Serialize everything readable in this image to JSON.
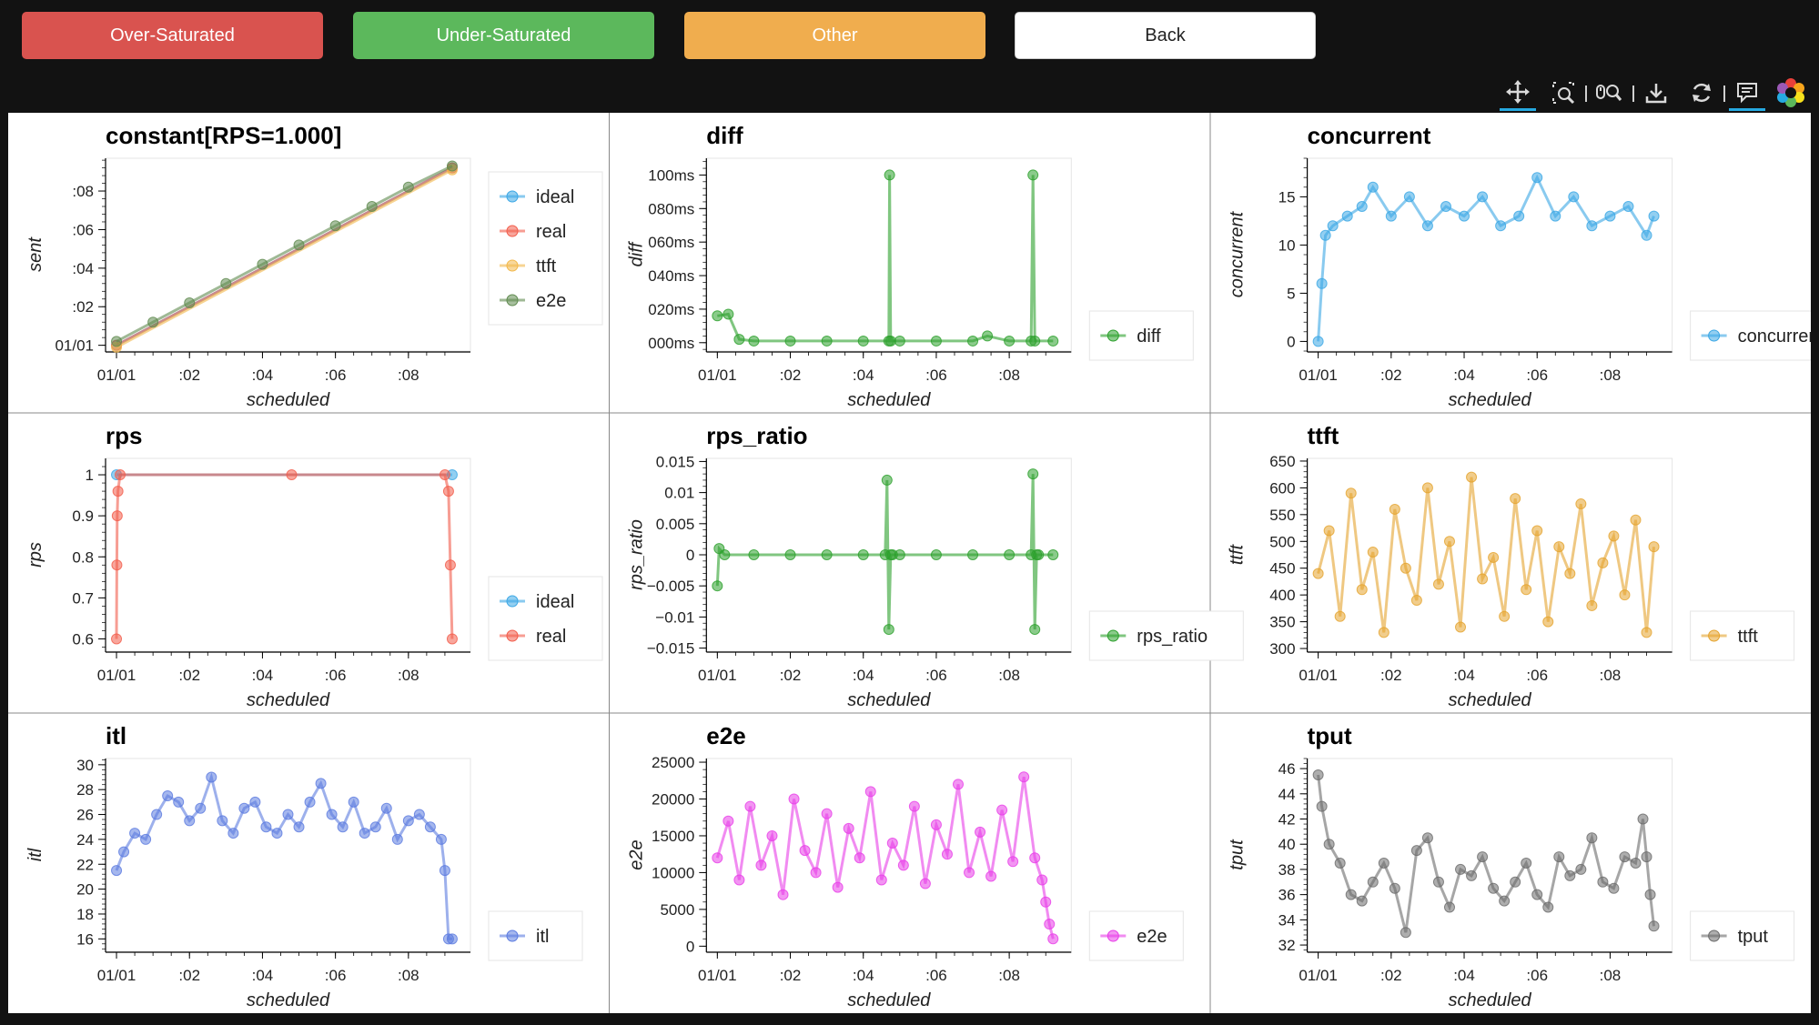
{
  "buttons": {
    "over": "Over-Saturated",
    "under": "Under-Saturated",
    "other": "Other",
    "back": "Back"
  },
  "button_colors": {
    "over": "#d9534f",
    "under": "#5cb85c",
    "other": "#f0ad4e",
    "back": "#ffffff"
  },
  "toolbar": {
    "icons": [
      "pan-icon",
      "box-zoom-icon",
      "wheel-zoom-icon",
      "save-icon",
      "reset-icon",
      "hover-icon",
      "bokeh-logo-icon"
    ],
    "active": [
      "pan-icon",
      "hover-icon"
    ]
  },
  "chart_data": [
    {
      "type": "line",
      "title": "constant[RPS=1.000]",
      "xlabel": "scheduled",
      "ylabel": "sent",
      "x_ticks": [
        "01/01",
        ":02",
        ":04",
        ":06",
        ":08"
      ],
      "y_ticks": [
        "01/01",
        ":02",
        ":04",
        ":06",
        ":08"
      ],
      "xlim": [
        -0.3,
        9.7
      ],
      "ylim": [
        -0.3,
        9.7
      ],
      "y_tick_values": [
        0,
        2,
        4,
        6,
        8
      ],
      "legend": [
        {
          "name": "ideal",
          "color": "#3ba7e5"
        },
        {
          "name": "real",
          "color": "#f25c4b"
        },
        {
          "name": "ttft",
          "color": "#f2b84b"
        },
        {
          "name": "e2e",
          "color": "#5f8a4f"
        }
      ],
      "series": [
        {
          "name": "ideal",
          "color": "#3ba7e5",
          "x": [
            0,
            9.2
          ],
          "y": [
            0,
            9.2
          ]
        },
        {
          "name": "real",
          "color": "#f25c4b",
          "x": [
            0,
            9.2
          ],
          "y": [
            0,
            9.2
          ]
        },
        {
          "name": "ttft",
          "color": "#f2b84b",
          "x": [
            0,
            9.2
          ],
          "y": [
            -0.1,
            9.1
          ]
        },
        {
          "name": "e2e",
          "color": "#5f8a4f",
          "x": [
            0,
            1,
            2,
            3,
            4,
            5,
            6,
            7,
            8,
            9.2
          ],
          "y": [
            0.2,
            1.2,
            2.2,
            3.2,
            4.2,
            5.2,
            6.2,
            7.2,
            8.2,
            9.3
          ]
        }
      ]
    },
    {
      "type": "line",
      "title": "diff",
      "xlabel": "scheduled",
      "ylabel": "diff",
      "x_ticks": [
        "01/01",
        ":02",
        ":04",
        ":06",
        ":08"
      ],
      "y_ticks": [
        "000ms",
        "020ms",
        "040ms",
        "060ms",
        "080ms",
        "100ms"
      ],
      "y_tick_values": [
        0,
        20,
        40,
        60,
        80,
        100
      ],
      "xlim": [
        -0.3,
        9.7
      ],
      "ylim": [
        -5,
        110
      ],
      "legend": [
        {
          "name": "diff",
          "color": "#2ca02c"
        }
      ],
      "series": [
        {
          "name": "diff",
          "color": "#2ca02c",
          "x": [
            0,
            0.3,
            0.6,
            1,
            2,
            3,
            4,
            4.7,
            4.72,
            4.75,
            5,
            6,
            7,
            7.4,
            8,
            8.6,
            8.65,
            8.7,
            9.2
          ],
          "y": [
            16,
            17,
            2,
            1,
            1,
            1,
            1,
            1,
            100,
            1,
            1,
            1,
            1,
            4,
            1,
            1,
            100,
            1,
            1
          ]
        }
      ]
    },
    {
      "type": "line",
      "title": "concurrent",
      "xlabel": "scheduled",
      "ylabel": "concurrent",
      "x_ticks": [
        "01/01",
        ":02",
        ":04",
        ":06",
        ":08"
      ],
      "y_ticks": [
        "0",
        "5",
        "10",
        "15"
      ],
      "y_tick_values": [
        0,
        5,
        10,
        15
      ],
      "xlim": [
        -0.3,
        9.7
      ],
      "ylim": [
        -1,
        19
      ],
      "legend": [
        {
          "name": "concurrent",
          "color": "#3ba7e5"
        }
      ],
      "series": [
        {
          "name": "concurrent",
          "color": "#3ba7e5",
          "x": [
            0,
            0.1,
            0.2,
            0.4,
            0.8,
            1.2,
            1.5,
            2,
            2.5,
            3,
            3.5,
            4,
            4.5,
            5,
            5.5,
            6,
            6.5,
            7,
            7.5,
            8,
            8.5,
            9,
            9.2
          ],
          "y": [
            0,
            6,
            11,
            12,
            13,
            14,
            16,
            13,
            15,
            12,
            14,
            13,
            15,
            12,
            13,
            17,
            13,
            15,
            12,
            13,
            14,
            11,
            13
          ]
        }
      ]
    },
    {
      "type": "line",
      "title": "rps",
      "xlabel": "scheduled",
      "ylabel": "rps",
      "x_ticks": [
        "01/01",
        ":02",
        ":04",
        ":06",
        ":08"
      ],
      "y_ticks": [
        "0.6",
        "0.7",
        "0.8",
        "0.9",
        "1"
      ],
      "y_tick_values": [
        0.6,
        0.7,
        0.8,
        0.9,
        1
      ],
      "xlim": [
        -0.3,
        9.7
      ],
      "ylim": [
        0.57,
        1.04
      ],
      "legend": [
        {
          "name": "ideal",
          "color": "#3ba7e5"
        },
        {
          "name": "real",
          "color": "#f25c4b"
        }
      ],
      "series": [
        {
          "name": "ideal",
          "color": "#3ba7e5",
          "x": [
            0,
            9.2
          ],
          "y": [
            1,
            1
          ]
        },
        {
          "name": "real",
          "color": "#f25c4b",
          "x": [
            0,
            0.01,
            0.02,
            0.04,
            0.1,
            4.8,
            9.0,
            9.1,
            9.15,
            9.2
          ],
          "y": [
            0.6,
            0.78,
            0.9,
            0.96,
            1,
            1,
            1,
            0.96,
            0.78,
            0.6
          ]
        }
      ]
    },
    {
      "type": "line",
      "title": "rps_ratio",
      "xlabel": "scheduled",
      "ylabel": "rps_ratio",
      "x_ticks": [
        "01/01",
        ":02",
        ":04",
        ":06",
        ":08"
      ],
      "y_ticks": [
        "−0.015",
        "−0.01",
        "−0.005",
        "0",
        "0.005",
        "0.01",
        "0.015"
      ],
      "y_tick_values": [
        -0.015,
        -0.01,
        -0.005,
        0,
        0.005,
        0.01,
        0.015
      ],
      "xlim": [
        -0.3,
        9.7
      ],
      "ylim": [
        -0.0155,
        0.0155
      ],
      "legend": [
        {
          "name": "rps_ratio",
          "color": "#2ca02c"
        }
      ],
      "series": [
        {
          "name": "rps_ratio",
          "color": "#2ca02c",
          "x": [
            0,
            0.05,
            0.2,
            1,
            2,
            3,
            4,
            4.6,
            4.65,
            4.7,
            4.75,
            4.8,
            5,
            6,
            7,
            8,
            8.6,
            8.65,
            8.7,
            8.75,
            8.8,
            9.2
          ],
          "y": [
            -0.005,
            0.001,
            0,
            0,
            0,
            0,
            0,
            0,
            0.012,
            -0.012,
            0.0,
            0,
            0,
            0,
            0,
            0,
            0,
            0.013,
            -0.012,
            0.0,
            0,
            0
          ]
        }
      ]
    },
    {
      "type": "line",
      "title": "ttft",
      "xlabel": "scheduled",
      "ylabel": "ttft",
      "x_ticks": [
        "01/01",
        ":02",
        ":04",
        ":06",
        ":08"
      ],
      "y_ticks": [
        "300",
        "350",
        "400",
        "450",
        "500",
        "550",
        "600",
        "650"
      ],
      "y_tick_values": [
        300,
        350,
        400,
        450,
        500,
        550,
        600,
        650
      ],
      "xlim": [
        -0.3,
        9.7
      ],
      "ylim": [
        295,
        655
      ],
      "legend": [
        {
          "name": "ttft",
          "color": "#e5a42e"
        }
      ],
      "series": [
        {
          "name": "ttft",
          "color": "#e5a42e",
          "x": [
            0,
            0.3,
            0.6,
            0.9,
            1.2,
            1.5,
            1.8,
            2.1,
            2.4,
            2.7,
            3,
            3.3,
            3.6,
            3.9,
            4.2,
            4.5,
            4.8,
            5.1,
            5.4,
            5.7,
            6,
            6.3,
            6.6,
            6.9,
            7.2,
            7.5,
            7.8,
            8.1,
            8.4,
            8.7,
            9,
            9.2
          ],
          "y": [
            440,
            520,
            360,
            590,
            410,
            480,
            330,
            560,
            450,
            390,
            600,
            420,
            500,
            340,
            620,
            430,
            470,
            360,
            580,
            410,
            520,
            350,
            490,
            440,
            570,
            380,
            460,
            510,
            400,
            540,
            330,
            490
          ]
        }
      ]
    },
    {
      "type": "line",
      "title": "itl",
      "xlabel": "scheduled",
      "ylabel": "itl",
      "x_ticks": [
        "01/01",
        ":02",
        ":04",
        ":06",
        ":08"
      ],
      "y_ticks": [
        "16",
        "18",
        "20",
        "22",
        "24",
        "26",
        "28",
        "30"
      ],
      "y_tick_values": [
        16,
        18,
        20,
        22,
        24,
        26,
        28,
        30
      ],
      "xlim": [
        -0.3,
        9.7
      ],
      "ylim": [
        15,
        30.5
      ],
      "legend": [
        {
          "name": "itl",
          "color": "#5b7be0"
        }
      ],
      "series": [
        {
          "name": "itl",
          "color": "#5b7be0",
          "x": [
            0,
            0.2,
            0.5,
            0.8,
            1.1,
            1.4,
            1.7,
            2.0,
            2.3,
            2.6,
            2.9,
            3.2,
            3.5,
            3.8,
            4.1,
            4.4,
            4.7,
            5.0,
            5.3,
            5.6,
            5.9,
            6.2,
            6.5,
            6.8,
            7.1,
            7.4,
            7.7,
            8.0,
            8.3,
            8.6,
            8.9,
            9.0,
            9.1,
            9.2
          ],
          "y": [
            21.5,
            23,
            24.5,
            24,
            26,
            27.5,
            27,
            25.5,
            26.5,
            29,
            25.5,
            24.5,
            26.5,
            27,
            25,
            24.5,
            26,
            25,
            27,
            28.5,
            26,
            25,
            27,
            24.5,
            25,
            26.5,
            24,
            25.5,
            26,
            25,
            24,
            21.5,
            16,
            16
          ]
        }
      ]
    },
    {
      "type": "line",
      "title": "e2e",
      "xlabel": "scheduled",
      "ylabel": "e2e",
      "x_ticks": [
        "01/01",
        ":02",
        ":04",
        ":06",
        ":08"
      ],
      "y_ticks": [
        "0",
        "5000",
        "10000",
        "15000",
        "20000",
        "25000"
      ],
      "y_tick_values": [
        0,
        5000,
        10000,
        15000,
        20000,
        25000
      ],
      "xlim": [
        -0.3,
        9.7
      ],
      "ylim": [
        -700,
        25500
      ],
      "legend": [
        {
          "name": "e2e",
          "color": "#e83ee8"
        }
      ],
      "series": [
        {
          "name": "e2e",
          "color": "#e83ee8",
          "x": [
            0,
            0.3,
            0.6,
            0.9,
            1.2,
            1.5,
            1.8,
            2.1,
            2.4,
            2.7,
            3,
            3.3,
            3.6,
            3.9,
            4.2,
            4.5,
            4.8,
            5.1,
            5.4,
            5.7,
            6,
            6.3,
            6.6,
            6.9,
            7.2,
            7.5,
            7.8,
            8.1,
            8.4,
            8.7,
            8.9,
            9.0,
            9.1,
            9.2
          ],
          "y": [
            12000,
            17000,
            9000,
            19000,
            11000,
            15000,
            7000,
            20000,
            13000,
            10000,
            18000,
            8000,
            16000,
            12000,
            21000,
            9000,
            14000,
            11000,
            19000,
            8500,
            16500,
            12500,
            22000,
            10000,
            15500,
            9500,
            18500,
            11500,
            23000,
            12000,
            9000,
            6000,
            3000,
            1000
          ]
        }
      ]
    },
    {
      "type": "line",
      "title": "tput",
      "xlabel": "scheduled",
      "ylabel": "tput",
      "x_ticks": [
        "01/01",
        ":02",
        ":04",
        ":06",
        ":08"
      ],
      "y_ticks": [
        "32",
        "34",
        "36",
        "38",
        "40",
        "42",
        "44",
        "46"
      ],
      "y_tick_values": [
        32,
        34,
        36,
        38,
        40,
        42,
        44,
        46
      ],
      "xlim": [
        -0.3,
        9.7
      ],
      "ylim": [
        31.5,
        46.8
      ],
      "legend": [
        {
          "name": "tput",
          "color": "#6b6b6b"
        }
      ],
      "series": [
        {
          "name": "tput",
          "color": "#6b6b6b",
          "x": [
            0,
            0.1,
            0.3,
            0.6,
            0.9,
            1.2,
            1.5,
            1.8,
            2.1,
            2.4,
            2.7,
            3.0,
            3.3,
            3.6,
            3.9,
            4.2,
            4.5,
            4.8,
            5.1,
            5.4,
            5.7,
            6.0,
            6.3,
            6.6,
            6.9,
            7.2,
            7.5,
            7.8,
            8.1,
            8.4,
            8.7,
            8.9,
            9.0,
            9.1,
            9.2
          ],
          "y": [
            45.5,
            43,
            40,
            38.5,
            36,
            35.5,
            37,
            38.5,
            36.5,
            33,
            39.5,
            40.5,
            37,
            35,
            38,
            37.5,
            39,
            36.5,
            35.5,
            37,
            38.5,
            36,
            35,
            39,
            37.5,
            38,
            40.5,
            37,
            36.5,
            39,
            38.5,
            42,
            39,
            36,
            33.5
          ]
        }
      ]
    }
  ]
}
